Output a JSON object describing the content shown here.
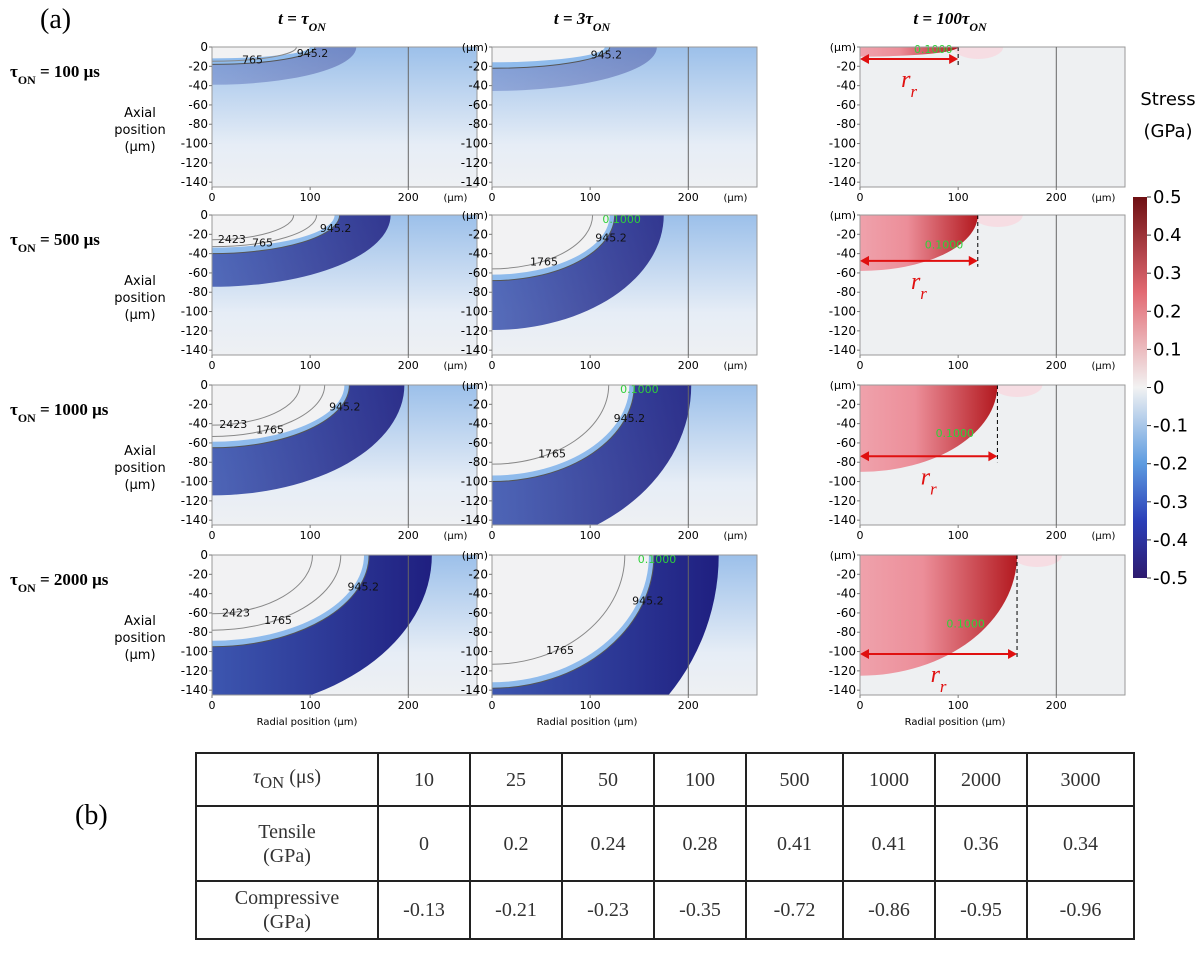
{
  "labels": {
    "a": "(a)",
    "b": "(b)"
  },
  "columns": [
    {
      "pre": "t = τ",
      "sub": "ON"
    },
    {
      "pre": "t = 3τ",
      "sub": "ON"
    },
    {
      "pre": "t = 100τ",
      "sub": "ON"
    }
  ],
  "rows": [
    {
      "label": {
        "pre": "τ",
        "sub": "ON",
        "post": " = 100 μs"
      },
      "panels": [
        {
          "contours": [
            "765",
            "945.2"
          ]
        },
        {
          "contours": [
            "945.2"
          ]
        },
        {
          "stress": [
            "0.1000"
          ]
        }
      ]
    },
    {
      "label": {
        "pre": "τ",
        "sub": "ON",
        "post": " = 500 μs"
      },
      "panels": [
        {
          "contours": [
            "2423",
            "765",
            "945.2"
          ]
        },
        {
          "contours": [
            "1765",
            "945.2"
          ],
          "stress": [
            "0.1000"
          ]
        },
        {
          "stress": [
            "0.1000"
          ]
        }
      ]
    },
    {
      "label": {
        "pre": "τ",
        "sub": "ON",
        "post": " = 1000 μs"
      },
      "panels": [
        {
          "contours": [
            "2423",
            "1765",
            "945.2"
          ]
        },
        {
          "contours": [
            "1765",
            "945.2"
          ],
          "stress": [
            "0.1000"
          ]
        },
        {
          "stress": [
            "0.1000"
          ]
        }
      ]
    },
    {
      "label": {
        "pre": "τ",
        "sub": "ON",
        "post": " = 2000 μs"
      },
      "panels": [
        {
          "contours": [
            "2423",
            "1765",
            "945.2"
          ]
        },
        {
          "contours": [
            "1765",
            "945.2"
          ],
          "stress": [
            "0.1000"
          ]
        },
        {
          "stress": [
            "0.1000"
          ]
        }
      ]
    }
  ],
  "y_axis_label": [
    "Axial",
    "position",
    "(μm)"
  ],
  "x_axis_label": "Radial position  (μm)",
  "unit": "(μm)",
  "xticks": [
    0,
    100,
    200
  ],
  "yticks": [
    0,
    -20,
    -40,
    -60,
    -80,
    -100,
    -120,
    -140
  ],
  "annotation": {
    "base": "r",
    "sub": "r"
  },
  "colorbar": {
    "title": [
      "Stress",
      "(GPa)"
    ],
    "ticks": [
      0.5,
      0.4,
      0.3,
      0.2,
      0.1,
      0,
      -0.1,
      -0.2,
      -0.3,
      -0.4,
      -0.5
    ]
  },
  "table": {
    "header": {
      "pre": "τ",
      "sub": "ON",
      "post": " (μs)"
    },
    "columns": [
      10,
      25,
      50,
      100,
      500,
      1000,
      2000,
      3000
    ],
    "rows": [
      {
        "label": [
          "Tensile",
          "(GPa)"
        ],
        "values": [
          0,
          0.2,
          0.24,
          0.28,
          0.41,
          0.41,
          0.36,
          0.34
        ]
      },
      {
        "label": [
          "Compressive",
          "(GPa)"
        ],
        "values": [
          -0.13,
          -0.21,
          -0.23,
          -0.35,
          -0.72,
          -0.86,
          -0.95,
          -0.96
        ]
      }
    ]
  }
}
